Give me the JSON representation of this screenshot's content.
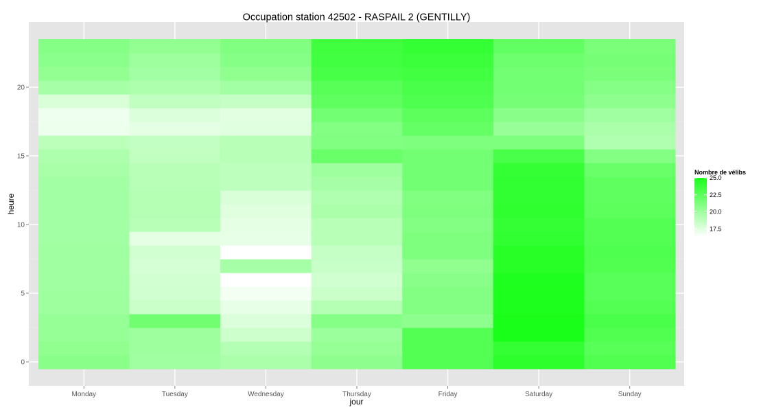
{
  "chart_data": {
    "type": "heatmap",
    "title": "Occupation station 42502 - RASPAIL 2 (GENTILLY)",
    "xlabel": "jour",
    "ylabel": "heure",
    "x_categories": [
      "Monday",
      "Tuesday",
      "Wednesday",
      "Thursday",
      "Friday",
      "Saturday",
      "Sunday"
    ],
    "y_range": [
      0,
      23
    ],
    "y_ticks": [
      0,
      5,
      10,
      15,
      20
    ],
    "y_tick_labels": [
      "0",
      "5",
      "10",
      "15",
      "20"
    ],
    "grid": true,
    "legend": {
      "title": "Nombre de vélibs",
      "position": "right",
      "min": 16.3,
      "max": 25.0,
      "breaks": [
        25.0,
        22.5,
        20.0,
        17.5
      ],
      "break_labels": [
        "25.0",
        "22.5",
        "20.0",
        "17.5"
      ],
      "low_color": "#ffffff",
      "high_color": "#1aff1a"
    },
    "values_by_day": [
      {
        "day": "Monday",
        "hours": [
          20.8,
          20.5,
          20.3,
          20.3,
          20.0,
          20.0,
          19.9,
          19.9,
          19.9,
          19.8,
          19.8,
          19.8,
          19.8,
          19.8,
          19.6,
          19.4,
          18.9,
          17.0,
          16.9,
          17.8,
          19.7,
          20.4,
          20.7,
          20.9
        ]
      },
      {
        "day": "Tuesday",
        "hours": [
          19.9,
          20.0,
          20.0,
          21.7,
          18.3,
          18.1,
          18.0,
          17.9,
          18.0,
          17.3,
          19.0,
          19.1,
          19.1,
          19.0,
          19.0,
          18.7,
          18.6,
          17.3,
          17.7,
          18.7,
          19.4,
          19.8,
          20.0,
          20.4
        ]
      },
      {
        "day": "Wednesday",
        "hours": [
          19.5,
          19.2,
          18.2,
          17.7,
          17.2,
          16.8,
          16.3,
          19.7,
          16.3,
          17.2,
          17.3,
          17.5,
          17.8,
          18.8,
          18.8,
          19.0,
          19.0,
          17.5,
          17.4,
          18.5,
          19.8,
          20.5,
          20.9,
          21.1
        ]
      },
      {
        "day": "Thursday",
        "hours": [
          20.6,
          20.3,
          20.1,
          20.9,
          19.1,
          18.3,
          18.1,
          18.4,
          18.5,
          19.0,
          19.0,
          19.5,
          19.3,
          19.7,
          20.0,
          22.0,
          21.1,
          21.0,
          21.6,
          22.4,
          22.7,
          23.3,
          23.5,
          23.6
        ]
      },
      {
        "day": "Friday",
        "hours": [
          22.8,
          22.8,
          22.8,
          20.6,
          21.0,
          21.0,
          20.8,
          20.5,
          21.2,
          21.2,
          21.0,
          21.2,
          21.1,
          21.6,
          21.6,
          21.6,
          21.2,
          22.2,
          22.5,
          23.0,
          23.2,
          23.5,
          23.8,
          24.0
        ]
      },
      {
        "day": "Saturday",
        "hours": [
          24.3,
          24.0,
          25.0,
          25.0,
          24.9,
          24.9,
          24.8,
          24.5,
          24.5,
          24.1,
          24.0,
          24.2,
          24.1,
          24.1,
          24.0,
          23.2,
          21.2,
          20.2,
          20.8,
          21.5,
          21.6,
          21.6,
          21.8,
          22.3
        ]
      },
      {
        "day": "Sunday",
        "hours": [
          22.9,
          22.7,
          22.9,
          23.2,
          22.8,
          22.6,
          22.6,
          22.9,
          23.0,
          22.8,
          22.8,
          22.5,
          22.4,
          22.4,
          22.0,
          21.0,
          19.3,
          19.5,
          19.9,
          20.6,
          20.9,
          21.3,
          21.5,
          21.3
        ]
      }
    ]
  }
}
